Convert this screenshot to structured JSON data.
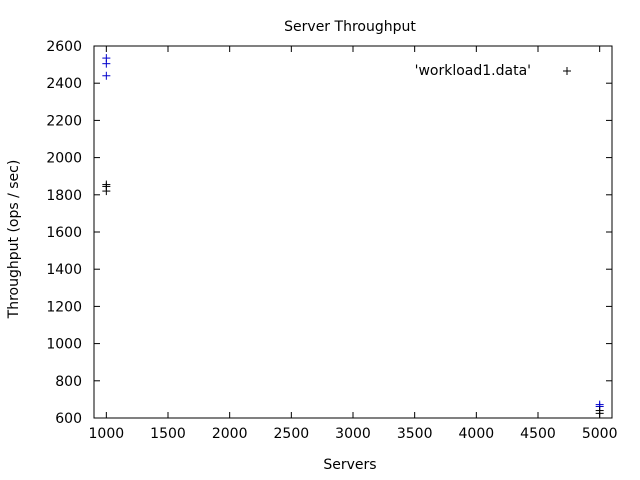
{
  "chart_data": {
    "type": "scatter",
    "title": "Server Throughput",
    "xlabel": "Servers",
    "ylabel": "Throughput (ops / sec)",
    "xlim": [
      900,
      5100
    ],
    "ylim": [
      600,
      2600
    ],
    "x_ticks": [
      1000,
      1500,
      2000,
      2500,
      3000,
      3500,
      4000,
      4500,
      5000
    ],
    "y_ticks": [
      600,
      800,
      1000,
      1200,
      1400,
      1600,
      1800,
      2000,
      2200,
      2400,
      2600
    ],
    "grid": false,
    "legend_position": "top-right",
    "legend_label": "'workload1.data'",
    "colors": {
      "blue": "#0000cc",
      "black": "#000000"
    },
    "series": [
      {
        "name": "'workload1.data'",
        "points": [
          {
            "x": 1000,
            "y": 2535,
            "color": "blue"
          },
          {
            "x": 1000,
            "y": 2505,
            "color": "blue"
          },
          {
            "x": 1000,
            "y": 2440,
            "color": "blue"
          },
          {
            "x": 1000,
            "y": 1855,
            "color": "black"
          },
          {
            "x": 1000,
            "y": 1845,
            "color": "black"
          },
          {
            "x": 1000,
            "y": 1820,
            "color": "black"
          },
          {
            "x": 5000,
            "y": 672,
            "color": "blue"
          },
          {
            "x": 5000,
            "y": 662,
            "color": "blue"
          },
          {
            "x": 5000,
            "y": 640,
            "color": "black"
          },
          {
            "x": 5000,
            "y": 625,
            "color": "black"
          }
        ]
      }
    ]
  }
}
